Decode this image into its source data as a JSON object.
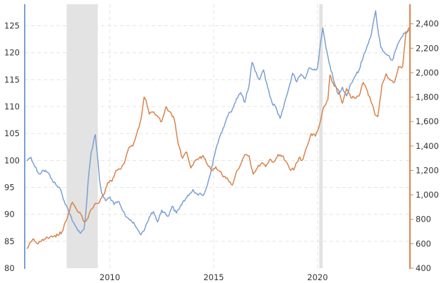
{
  "chart_data": {
    "type": "line",
    "title": "",
    "xlabel": "",
    "ylabel_left": "",
    "ylabel_right": "",
    "x_range": [
      2005.9,
      2024.45
    ],
    "x_ticks": [
      {
        "value": 2010,
        "label": "2010"
      },
      {
        "value": 2015,
        "label": "2015"
      },
      {
        "value": 2020,
        "label": "2020"
      }
    ],
    "ylim_left": [
      80,
      129
    ],
    "ylim_right": [
      400,
      2560
    ],
    "y_ticks_left": [
      {
        "value": 80,
        "label": "80"
      },
      {
        "value": 85,
        "label": "85"
      },
      {
        "value": 90,
        "label": "90"
      },
      {
        "value": 95,
        "label": "95"
      },
      {
        "value": 100,
        "label": "100"
      },
      {
        "value": 105,
        "label": "105"
      },
      {
        "value": 110,
        "label": "110"
      },
      {
        "value": 115,
        "label": "115"
      },
      {
        "value": 120,
        "label": "120"
      },
      {
        "value": 125,
        "label": "125"
      }
    ],
    "y_ticks_right": [
      {
        "value": 400,
        "label": "400"
      },
      {
        "value": 600,
        "label": "600"
      },
      {
        "value": 800,
        "label": "800"
      },
      {
        "value": 1000,
        "label": "1,000"
      },
      {
        "value": 1200,
        "label": "1,200"
      },
      {
        "value": 1400,
        "label": "1,400"
      },
      {
        "value": 1600,
        "label": "1,600"
      },
      {
        "value": 1800,
        "label": "1,800"
      },
      {
        "value": 2000,
        "label": "2,000"
      },
      {
        "value": 2200,
        "label": "2,200"
      },
      {
        "value": 2400,
        "label": "2,400"
      }
    ],
    "grid": true,
    "shaded_periods": [
      [
        2007.92,
        2009.42
      ],
      [
        2020.08,
        2020.25
      ]
    ],
    "series": [
      {
        "axis": "left",
        "color": "#7a9fd3",
        "points": [
          [
            2006.0,
            100.0
          ],
          [
            2006.2,
            100.6
          ],
          [
            2006.4,
            98.8
          ],
          [
            2006.6,
            97.5
          ],
          [
            2006.8,
            98.2
          ],
          [
            2007.0,
            97.8
          ],
          [
            2007.2,
            96.6
          ],
          [
            2007.4,
            95.5
          ],
          [
            2007.6,
            94.8
          ],
          [
            2007.8,
            92.5
          ],
          [
            2008.0,
            90.8
          ],
          [
            2008.2,
            88.7
          ],
          [
            2008.4,
            87.5
          ],
          [
            2008.6,
            86.5
          ],
          [
            2008.75,
            87.2
          ],
          [
            2008.85,
            90.5
          ],
          [
            2008.95,
            96.0
          ],
          [
            2009.1,
            101.5
          ],
          [
            2009.3,
            104.8
          ],
          [
            2009.4,
            101.0
          ],
          [
            2009.5,
            96.5
          ],
          [
            2009.6,
            94.0
          ],
          [
            2009.8,
            92.5
          ],
          [
            2010.0,
            93.2
          ],
          [
            2010.2,
            91.8
          ],
          [
            2010.4,
            92.4
          ],
          [
            2010.6,
            90.8
          ],
          [
            2010.8,
            89.5
          ],
          [
            2011.0,
            89.0
          ],
          [
            2011.2,
            88.0
          ],
          [
            2011.4,
            86.8
          ],
          [
            2011.5,
            86.2
          ],
          [
            2011.7,
            87.5
          ],
          [
            2011.9,
            89.5
          ],
          [
            2012.1,
            90.5
          ],
          [
            2012.3,
            88.6
          ],
          [
            2012.5,
            90.8
          ],
          [
            2012.8,
            89.6
          ],
          [
            2013.0,
            91.5
          ],
          [
            2013.2,
            90.2
          ],
          [
            2013.5,
            92.2
          ],
          [
            2013.8,
            93.5
          ],
          [
            2014.0,
            94.6
          ],
          [
            2014.2,
            93.8
          ],
          [
            2014.5,
            93.5
          ],
          [
            2014.7,
            95.5
          ],
          [
            2014.9,
            98.6
          ],
          [
            2015.1,
            102.0
          ],
          [
            2015.3,
            104.5
          ],
          [
            2015.5,
            106.3
          ],
          [
            2015.7,
            108.5
          ],
          [
            2015.9,
            109.5
          ],
          [
            2016.1,
            111.5
          ],
          [
            2016.3,
            112.6
          ],
          [
            2016.5,
            110.8
          ],
          [
            2016.7,
            113.8
          ],
          [
            2016.85,
            118.2
          ],
          [
            2017.0,
            116.5
          ],
          [
            2017.2,
            115.0
          ],
          [
            2017.4,
            116.8
          ],
          [
            2017.6,
            113.5
          ],
          [
            2017.8,
            110.8
          ],
          [
            2018.0,
            109.8
          ],
          [
            2018.2,
            107.8
          ],
          [
            2018.4,
            110.5
          ],
          [
            2018.6,
            113.2
          ],
          [
            2018.8,
            116.2
          ],
          [
            2019.0,
            114.6
          ],
          [
            2019.2,
            116.0
          ],
          [
            2019.4,
            115.2
          ],
          [
            2019.6,
            117.2
          ],
          [
            2019.8,
            116.8
          ],
          [
            2020.0,
            117.2
          ],
          [
            2020.15,
            122.0
          ],
          [
            2020.25,
            124.6
          ],
          [
            2020.4,
            121.0
          ],
          [
            2020.6,
            117.6
          ],
          [
            2020.8,
            114.5
          ],
          [
            2021.0,
            112.3
          ],
          [
            2021.2,
            113.6
          ],
          [
            2021.4,
            112.0
          ],
          [
            2021.6,
            114.2
          ],
          [
            2021.8,
            115.6
          ],
          [
            2022.0,
            116.8
          ],
          [
            2022.2,
            119.2
          ],
          [
            2022.4,
            121.4
          ],
          [
            2022.6,
            123.6
          ],
          [
            2022.8,
            127.8
          ],
          [
            2022.9,
            124.5
          ],
          [
            2023.05,
            121.0
          ],
          [
            2023.2,
            120.2
          ],
          [
            2023.4,
            119.5
          ],
          [
            2023.6,
            118.6
          ],
          [
            2023.8,
            120.8
          ],
          [
            2024.0,
            122.6
          ],
          [
            2024.2,
            123.6
          ],
          [
            2024.4,
            124.3
          ]
        ]
      },
      {
        "axis": "right",
        "color": "#d9824a",
        "points": [
          [
            2006.0,
            560
          ],
          [
            2006.15,
            610
          ],
          [
            2006.3,
            640
          ],
          [
            2006.5,
            600
          ],
          [
            2006.7,
            620
          ],
          [
            2006.9,
            640
          ],
          [
            2007.1,
            650
          ],
          [
            2007.3,
            660
          ],
          [
            2007.5,
            670
          ],
          [
            2007.7,
            700
          ],
          [
            2007.9,
            790
          ],
          [
            2008.1,
            900
          ],
          [
            2008.2,
            940
          ],
          [
            2008.4,
            880
          ],
          [
            2008.6,
            840
          ],
          [
            2008.75,
            780
          ],
          [
            2008.95,
            810
          ],
          [
            2009.1,
            880
          ],
          [
            2009.3,
            930
          ],
          [
            2009.5,
            940
          ],
          [
            2009.7,
            1000
          ],
          [
            2009.9,
            1100
          ],
          [
            2010.1,
            1110
          ],
          [
            2010.3,
            1200
          ],
          [
            2010.5,
            1210
          ],
          [
            2010.7,
            1260
          ],
          [
            2010.9,
            1380
          ],
          [
            2011.1,
            1400
          ],
          [
            2011.3,
            1500
          ],
          [
            2011.5,
            1620
          ],
          [
            2011.65,
            1800
          ],
          [
            2011.75,
            1770
          ],
          [
            2011.9,
            1660
          ],
          [
            2012.1,
            1680
          ],
          [
            2012.3,
            1640
          ],
          [
            2012.5,
            1600
          ],
          [
            2012.7,
            1720
          ],
          [
            2012.9,
            1680
          ],
          [
            2013.1,
            1620
          ],
          [
            2013.3,
            1410
          ],
          [
            2013.5,
            1300
          ],
          [
            2013.7,
            1350
          ],
          [
            2013.9,
            1220
          ],
          [
            2014.1,
            1280
          ],
          [
            2014.3,
            1300
          ],
          [
            2014.5,
            1320
          ],
          [
            2014.7,
            1250
          ],
          [
            2014.9,
            1200
          ],
          [
            2015.1,
            1230
          ],
          [
            2015.3,
            1190
          ],
          [
            2015.5,
            1150
          ],
          [
            2015.7,
            1120
          ],
          [
            2015.9,
            1080
          ],
          [
            2016.1,
            1190
          ],
          [
            2016.3,
            1250
          ],
          [
            2016.5,
            1330
          ],
          [
            2016.7,
            1320
          ],
          [
            2016.9,
            1170
          ],
          [
            2017.1,
            1220
          ],
          [
            2017.3,
            1260
          ],
          [
            2017.5,
            1230
          ],
          [
            2017.7,
            1290
          ],
          [
            2017.9,
            1270
          ],
          [
            2018.1,
            1330
          ],
          [
            2018.3,
            1320
          ],
          [
            2018.5,
            1270
          ],
          [
            2018.7,
            1200
          ],
          [
            2018.9,
            1220
          ],
          [
            2019.1,
            1300
          ],
          [
            2019.3,
            1290
          ],
          [
            2019.5,
            1400
          ],
          [
            2019.7,
            1500
          ],
          [
            2019.9,
            1480
          ],
          [
            2020.1,
            1580
          ],
          [
            2020.3,
            1720
          ],
          [
            2020.5,
            1780
          ],
          [
            2020.6,
            1980
          ],
          [
            2020.8,
            1890
          ],
          [
            2021.0,
            1860
          ],
          [
            2021.2,
            1750
          ],
          [
            2021.4,
            1870
          ],
          [
            2021.6,
            1800
          ],
          [
            2021.8,
            1790
          ],
          [
            2022.0,
            1810
          ],
          [
            2022.2,
            1920
          ],
          [
            2022.4,
            1850
          ],
          [
            2022.6,
            1750
          ],
          [
            2022.8,
            1650
          ],
          [
            2022.9,
            1640
          ],
          [
            2023.1,
            1900
          ],
          [
            2023.3,
            1990
          ],
          [
            2023.5,
            1940
          ],
          [
            2023.7,
            1920
          ],
          [
            2023.9,
            2050
          ],
          [
            2024.1,
            2050
          ],
          [
            2024.25,
            2320
          ],
          [
            2024.4,
            2370
          ]
        ]
      }
    ]
  }
}
